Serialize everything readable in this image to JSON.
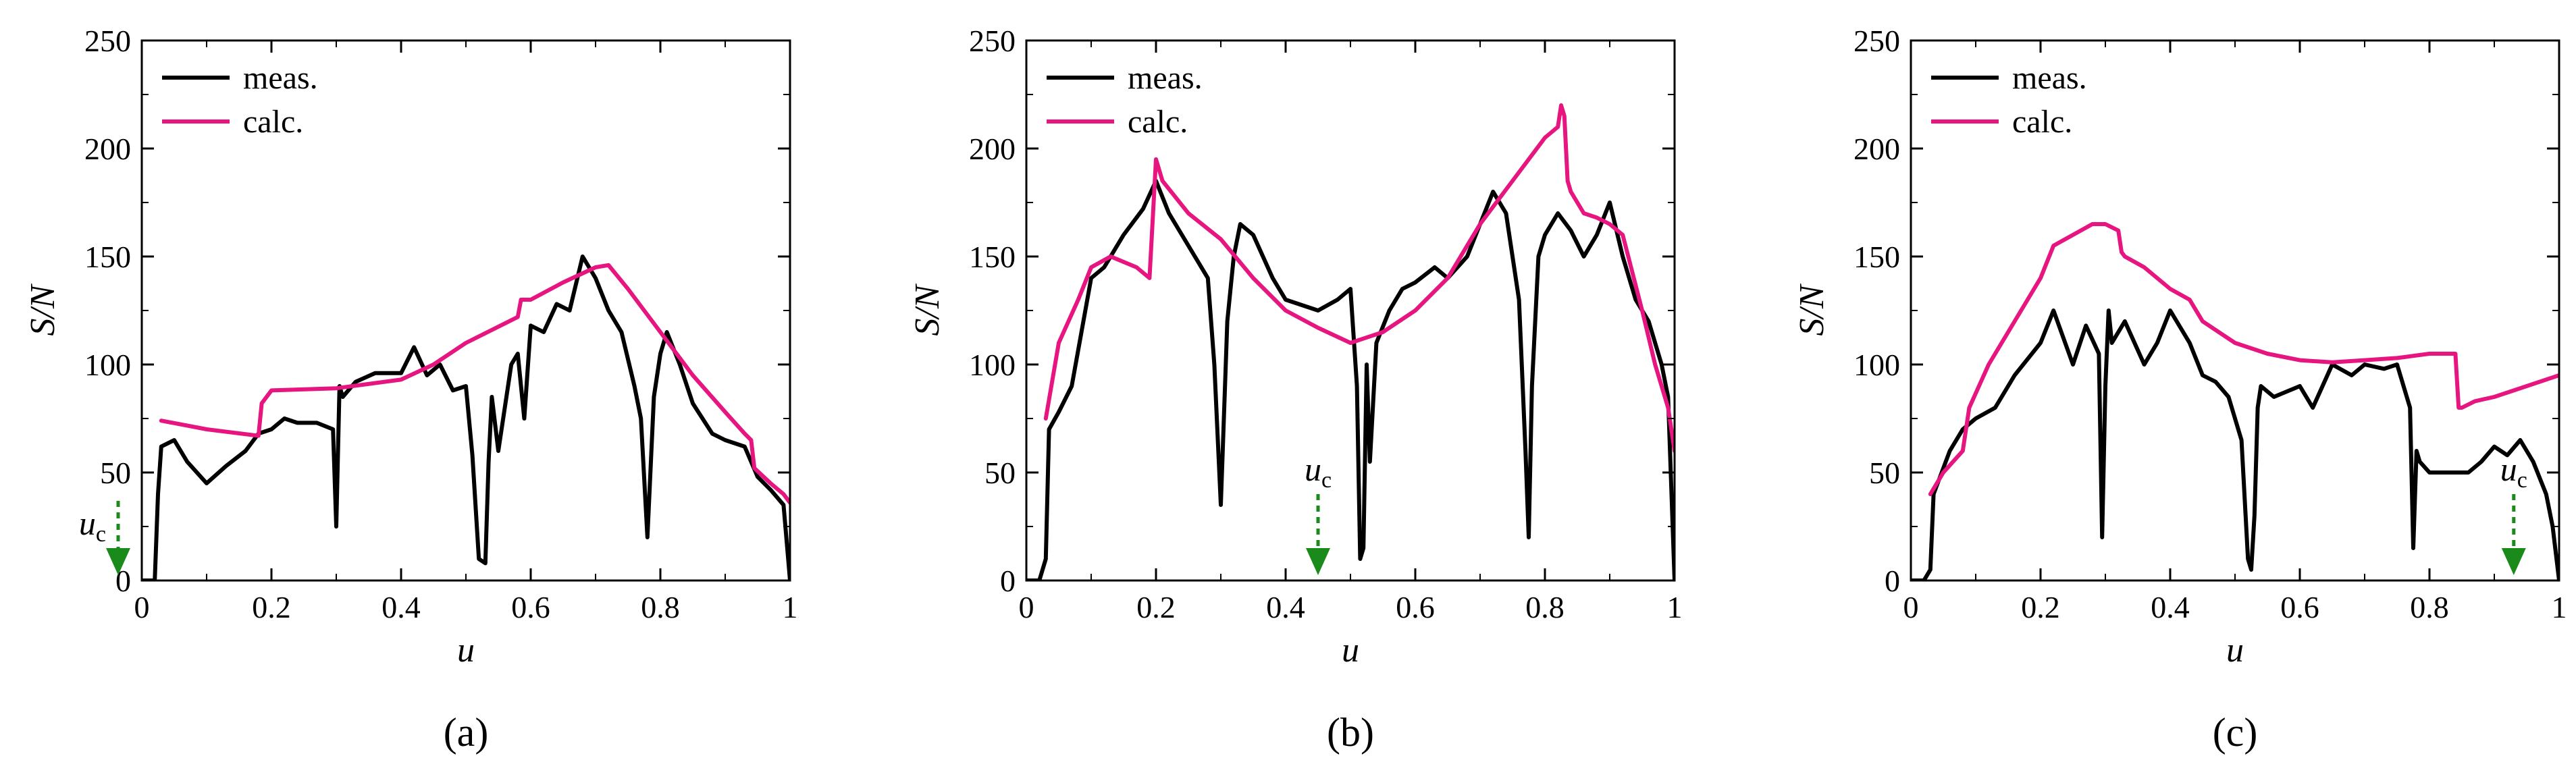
{
  "colors": {
    "meas": "#000000",
    "calc": "#e6157f",
    "arrow": "#1a8a1a"
  },
  "chart_data": [
    {
      "type": "line",
      "panel_label": "(a)",
      "xlabel": "u",
      "ylabel": "S/N",
      "xlim": [
        0,
        1
      ],
      "ylim": [
        0,
        250
      ],
      "xticks": [
        "0",
        "0.2",
        "0.4",
        "0.6",
        "0.8",
        "1"
      ],
      "yticks": [
        "0",
        "50",
        "100",
        "150",
        "200",
        "250"
      ],
      "legend": {
        "position": "top-left",
        "entries": [
          "meas.",
          "calc."
        ]
      },
      "annotation": {
        "text": "u",
        "sub": "c",
        "x": -0.04,
        "pos": "left"
      },
      "series": [
        {
          "name": "meas.",
          "color": "#000000",
          "x": [
            0,
            0.02,
            0.025,
            0.03,
            0.05,
            0.07,
            0.1,
            0.13,
            0.16,
            0.18,
            0.2,
            0.22,
            0.24,
            0.27,
            0.295,
            0.3,
            0.305,
            0.31,
            0.33,
            0.36,
            0.4,
            0.42,
            0.44,
            0.46,
            0.48,
            0.5,
            0.51,
            0.52,
            0.53,
            0.535,
            0.54,
            0.55,
            0.57,
            0.58,
            0.59,
            0.6,
            0.62,
            0.64,
            0.66,
            0.68,
            0.69,
            0.7,
            0.72,
            0.74,
            0.76,
            0.77,
            0.78,
            0.79,
            0.8,
            0.81,
            0.83,
            0.85,
            0.88,
            0.9,
            0.93,
            0.95,
            0.97,
            0.99,
            1
          ],
          "y": [
            0,
            0,
            40,
            62,
            65,
            55,
            45,
            53,
            60,
            68,
            70,
            75,
            73,
            73,
            70,
            25,
            90,
            85,
            92,
            96,
            96,
            108,
            95,
            100,
            88,
            90,
            58,
            10,
            8,
            55,
            85,
            60,
            100,
            105,
            75,
            118,
            115,
            128,
            125,
            150,
            145,
            140,
            125,
            115,
            90,
            75,
            20,
            85,
            105,
            115,
            100,
            82,
            68,
            65,
            62,
            48,
            42,
            35,
            0
          ]
        },
        {
          "name": "calc.",
          "color": "#e6157f",
          "x": [
            0.03,
            0.1,
            0.18,
            0.185,
            0.2,
            0.3,
            0.4,
            0.45,
            0.5,
            0.58,
            0.585,
            0.6,
            0.65,
            0.7,
            0.72,
            0.75,
            0.8,
            0.85,
            0.9,
            0.93,
            0.94,
            0.945,
            0.97,
            0.99,
            1
          ],
          "y": [
            74,
            70,
            67,
            82,
            88,
            89,
            93,
            100,
            110,
            122,
            130,
            130,
            138,
            145,
            146,
            135,
            115,
            95,
            78,
            68,
            65,
            52,
            45,
            40,
            36
          ]
        }
      ]
    },
    {
      "type": "line",
      "panel_label": "(b)",
      "xlabel": "u",
      "ylabel": "S/N",
      "xlim": [
        0,
        1
      ],
      "ylim": [
        0,
        250
      ],
      "xticks": [
        "0",
        "0.2",
        "0.4",
        "0.6",
        "0.8",
        "1"
      ],
      "yticks": [
        "0",
        "50",
        "100",
        "150",
        "200",
        "250"
      ],
      "legend": {
        "position": "top-left",
        "entries": [
          "meas.",
          "calc."
        ]
      },
      "annotation": {
        "text": "u",
        "sub": "c",
        "x": 0.45,
        "pos": "top"
      },
      "series": [
        {
          "name": "meas.",
          "color": "#000000",
          "x": [
            0,
            0.02,
            0.03,
            0.035,
            0.05,
            0.07,
            0.1,
            0.12,
            0.15,
            0.18,
            0.2,
            0.22,
            0.24,
            0.26,
            0.28,
            0.29,
            0.3,
            0.31,
            0.32,
            0.33,
            0.35,
            0.38,
            0.4,
            0.42,
            0.45,
            0.48,
            0.5,
            0.51,
            0.515,
            0.52,
            0.525,
            0.53,
            0.54,
            0.56,
            0.58,
            0.6,
            0.63,
            0.65,
            0.68,
            0.7,
            0.72,
            0.74,
            0.76,
            0.77,
            0.775,
            0.78,
            0.79,
            0.8,
            0.82,
            0.84,
            0.86,
            0.88,
            0.9,
            0.92,
            0.94,
            0.96,
            0.98,
            0.99,
            1
          ],
          "y": [
            0,
            0,
            10,
            70,
            78,
            90,
            140,
            145,
            160,
            172,
            185,
            170,
            160,
            150,
            140,
            100,
            35,
            120,
            150,
            165,
            160,
            140,
            130,
            128,
            125,
            130,
            135,
            90,
            10,
            15,
            100,
            55,
            110,
            125,
            135,
            138,
            145,
            140,
            150,
            165,
            180,
            170,
            130,
            60,
            20,
            90,
            150,
            160,
            170,
            162,
            150,
            160,
            175,
            150,
            130,
            120,
            100,
            85,
            0
          ]
        },
        {
          "name": "calc.",
          "color": "#e6157f",
          "x": [
            0.03,
            0.05,
            0.08,
            0.1,
            0.13,
            0.17,
            0.19,
            0.2,
            0.21,
            0.25,
            0.3,
            0.35,
            0.4,
            0.45,
            0.5,
            0.55,
            0.6,
            0.65,
            0.7,
            0.75,
            0.8,
            0.82,
            0.825,
            0.83,
            0.835,
            0.84,
            0.86,
            0.88,
            0.9,
            0.92,
            0.95,
            0.97,
            0.99,
            1
          ],
          "y": [
            75,
            110,
            130,
            145,
            150,
            145,
            140,
            195,
            185,
            170,
            158,
            140,
            125,
            117,
            110,
            115,
            125,
            140,
            165,
            185,
            205,
            210,
            220,
            215,
            185,
            180,
            170,
            168,
            165,
            160,
            125,
            100,
            80,
            60
          ]
        }
      ]
    },
    {
      "type": "line",
      "panel_label": "(c)",
      "xlabel": "u",
      "ylabel": "S/N",
      "xlim": [
        0,
        1
      ],
      "ylim": [
        0,
        250
      ],
      "xticks": [
        "0",
        "0.2",
        "0.4",
        "0.6",
        "0.8",
        "1"
      ],
      "yticks": [
        "0",
        "50",
        "100",
        "150",
        "200",
        "250"
      ],
      "legend": {
        "position": "top-left",
        "entries": [
          "meas.",
          "calc."
        ]
      },
      "annotation": {
        "text": "u",
        "sub": "c",
        "x": 0.93,
        "pos": "top"
      },
      "series": [
        {
          "name": "meas.",
          "color": "#000000",
          "x": [
            0,
            0.02,
            0.03,
            0.035,
            0.06,
            0.08,
            0.1,
            0.13,
            0.16,
            0.2,
            0.22,
            0.25,
            0.27,
            0.29,
            0.295,
            0.3,
            0.305,
            0.31,
            0.33,
            0.36,
            0.38,
            0.4,
            0.43,
            0.45,
            0.47,
            0.49,
            0.51,
            0.52,
            0.525,
            0.53,
            0.535,
            0.54,
            0.56,
            0.6,
            0.62,
            0.65,
            0.68,
            0.7,
            0.73,
            0.75,
            0.77,
            0.775,
            0.78,
            0.785,
            0.8,
            0.83,
            0.86,
            0.88,
            0.9,
            0.92,
            0.94,
            0.96,
            0.98,
            0.99,
            1
          ],
          "y": [
            0,
            0,
            5,
            40,
            60,
            70,
            75,
            80,
            95,
            110,
            125,
            100,
            118,
            105,
            20,
            90,
            125,
            110,
            120,
            100,
            110,
            125,
            110,
            95,
            92,
            85,
            65,
            10,
            5,
            30,
            80,
            90,
            85,
            90,
            80,
            100,
            95,
            100,
            98,
            100,
            80,
            15,
            60,
            55,
            50,
            50,
            50,
            55,
            62,
            58,
            65,
            55,
            40,
            25,
            0
          ]
        },
        {
          "name": "calc.",
          "color": "#e6157f",
          "x": [
            0.03,
            0.05,
            0.08,
            0.09,
            0.12,
            0.16,
            0.2,
            0.22,
            0.25,
            0.28,
            0.3,
            0.32,
            0.325,
            0.33,
            0.36,
            0.4,
            0.43,
            0.45,
            0.5,
            0.55,
            0.6,
            0.65,
            0.7,
            0.75,
            0.8,
            0.84,
            0.845,
            0.85,
            0.87,
            0.9,
            0.95,
            1
          ],
          "y": [
            40,
            50,
            60,
            80,
            100,
            120,
            140,
            155,
            160,
            165,
            165,
            162,
            152,
            150,
            145,
            135,
            130,
            120,
            110,
            105,
            102,
            101,
            102,
            103,
            105,
            105,
            80,
            80,
            83,
            85,
            90,
            95
          ]
        }
      ]
    }
  ]
}
